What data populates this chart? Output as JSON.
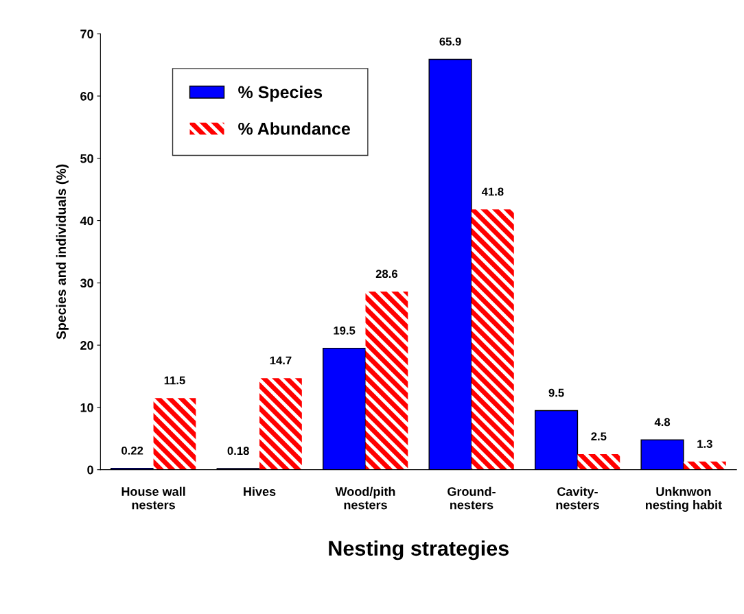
{
  "chart_data": {
    "type": "bar",
    "xlabel": "Nesting strategies",
    "ylabel": "Species and individuals (%)",
    "categories": [
      "House wall\nnesters",
      "Hives",
      "Wood/pith\nnesters",
      "Ground-\nnesters",
      "Cavity-\nnesters",
      "Unknwon\nnesting habit"
    ],
    "series": [
      {
        "name": "% Species",
        "color": "#0000ff",
        "values": [
          0.22,
          0.18,
          19.5,
          65.9,
          9.5,
          4.8
        ]
      },
      {
        "name": "% Abundance",
        "color": "#ff0000",
        "values": [
          11.5,
          14.7,
          28.6,
          41.8,
          2.5,
          1.3
        ]
      }
    ],
    "ylim": [
      0,
      70
    ],
    "yticks": [
      0,
      10,
      20,
      30,
      40,
      50,
      60,
      70
    ],
    "grid": false,
    "legend": "top left",
    "data_labels": true
  }
}
